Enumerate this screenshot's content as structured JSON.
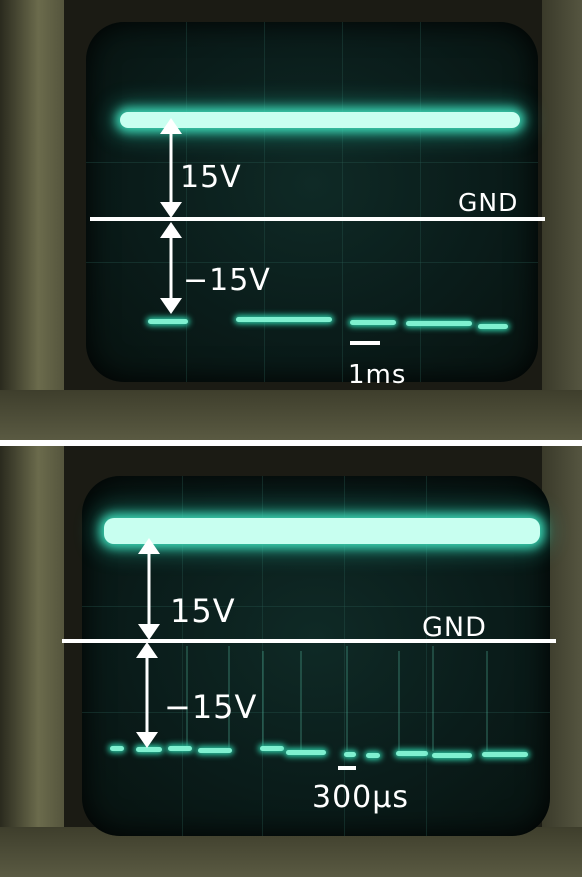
{
  "top_panel": {
    "upper_level": "15V",
    "lower_level": "−15V",
    "ground": "GND",
    "timebase": "1ms"
  },
  "bottom_panel": {
    "upper_level": "15V",
    "lower_level": "−15V",
    "ground": "GND",
    "timebase": "300μs"
  },
  "colors": {
    "trace": "#7ff0d0",
    "screen": "#0a1c1a",
    "annotation": "#ffffff"
  }
}
